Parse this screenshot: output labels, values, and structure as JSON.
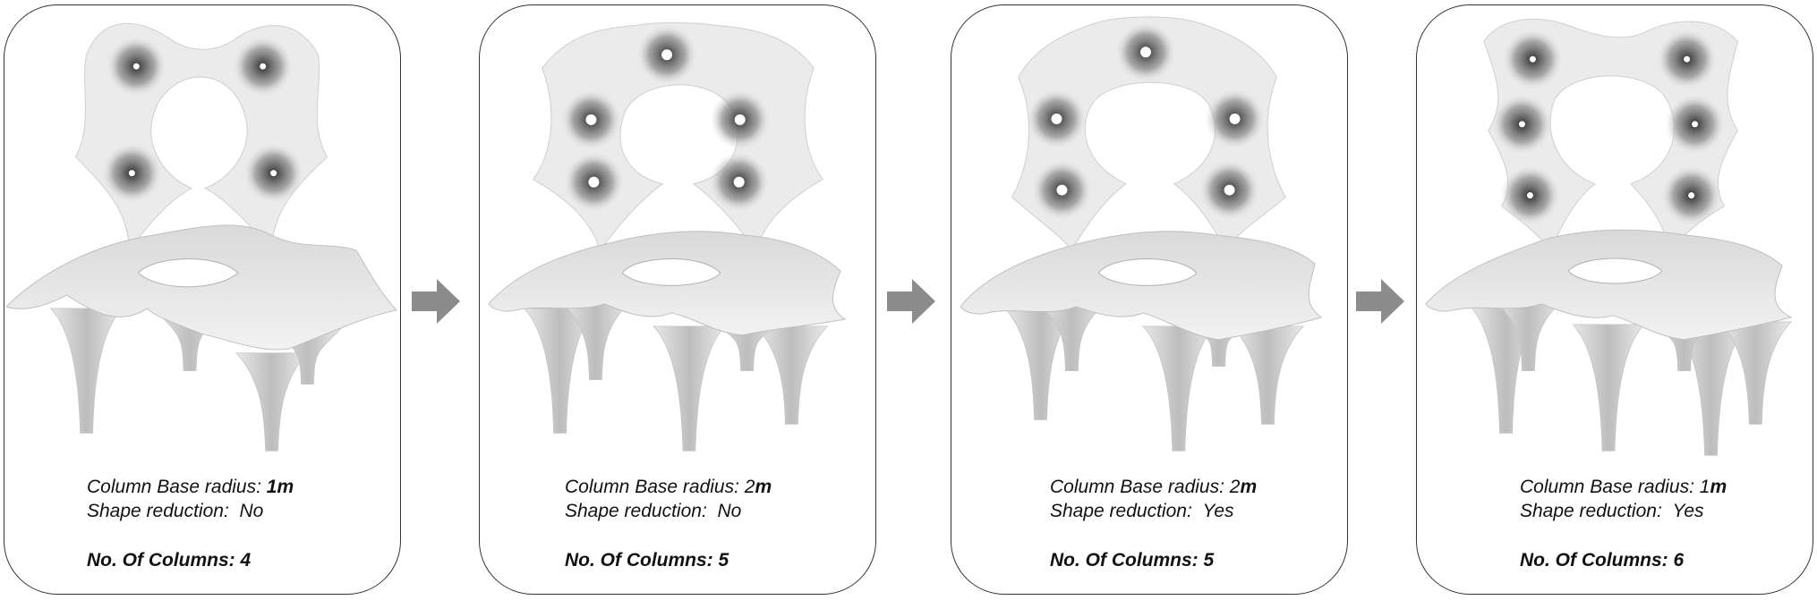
{
  "colors": {
    "border": "#333333",
    "arrow": "#8c8c8c",
    "surface_light": "#ececec",
    "surface_dark": "#555555"
  },
  "panels": [
    {
      "radius_label": "Column Base radius:",
      "radius_value": "1",
      "radius_unit": "m",
      "reduction_label": "Shape reduction:",
      "reduction_value": "No",
      "columns_label": "No. Of Columns:",
      "columns_value": "4",
      "columns": 4
    },
    {
      "radius_label": "Column Base radius:",
      "radius_value": "2",
      "radius_unit": "m",
      "reduction_label": "Shape reduction:",
      "reduction_value": "No",
      "columns_label": "No. Of Columns:",
      "columns_value": "5",
      "columns": 5
    },
    {
      "radius_label": "Column Base radius:",
      "radius_value": "2",
      "radius_unit": "m",
      "reduction_label": "Shape reduction:",
      "reduction_value": "Yes",
      "columns_label": "No. Of Columns:",
      "columns_value": "5",
      "columns": 5
    },
    {
      "radius_label": "Column Base radius:",
      "radius_value": "1",
      "radius_unit": "m",
      "reduction_label": "Shape reduction:",
      "reduction_value": "Yes",
      "columns_label": "No. Of Columns:",
      "columns_value": "6",
      "columns": 6
    }
  ],
  "arrows": [
    "right-arrow-icon",
    "right-arrow-icon",
    "right-arrow-icon"
  ]
}
